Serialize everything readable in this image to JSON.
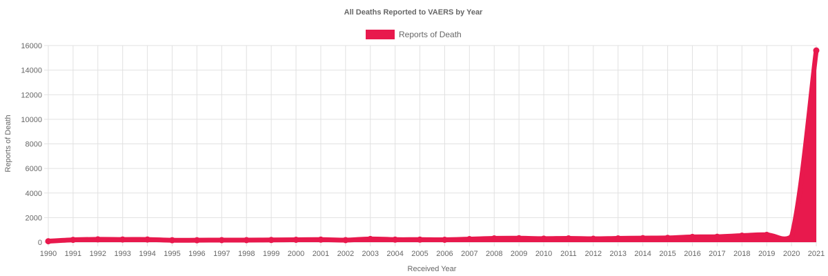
{
  "chart_data": {
    "type": "area",
    "title": "All Deaths Reported to VAERS by Year",
    "xlabel": "Received Year",
    "ylabel": "Reports of Death",
    "ylim": [
      0,
      16000
    ],
    "yticks": [
      0,
      2000,
      4000,
      6000,
      8000,
      10000,
      12000,
      14000,
      16000
    ],
    "categories": [
      "1990",
      "1991",
      "1992",
      "1993",
      "1994",
      "1995",
      "1996",
      "1997",
      "1998",
      "1999",
      "2000",
      "2001",
      "2002",
      "2003",
      "2004",
      "2005",
      "2006",
      "2007",
      "2008",
      "2009",
      "2010",
      "2011",
      "2012",
      "2013",
      "2014",
      "2015",
      "2016",
      "2017",
      "2018",
      "2019",
      "2020",
      "2021"
    ],
    "series": [
      {
        "name": "Reports of Death",
        "color": "#e8194d",
        "values": [
          80,
          190,
          230,
          220,
          220,
          160,
          160,
          170,
          170,
          180,
          200,
          210,
          170,
          260,
          210,
          210,
          200,
          250,
          310,
          320,
          290,
          310,
          280,
          310,
          330,
          350,
          430,
          440,
          530,
          600,
          420,
          15600
        ]
      }
    ],
    "legend_position": "top-center",
    "grid": true
  }
}
